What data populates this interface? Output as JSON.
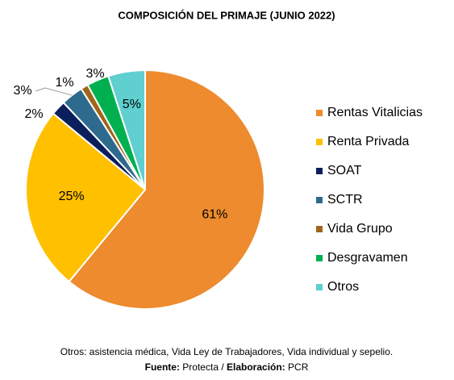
{
  "chart_data": {
    "type": "pie",
    "title": "COMPOSICIÓN DEL PRIMAJE (JUNIO 2022)",
    "categories": [
      "Rentas Vitalicias",
      "Renta Privada",
      "SOAT",
      "SCTR",
      "Vida Grupo",
      "Desgravamen",
      "Otros"
    ],
    "values": [
      61,
      25,
      2,
      3,
      1,
      3,
      5
    ],
    "value_labels": [
      "61%",
      "25%",
      "2%",
      "3%",
      "1%",
      "3%",
      "5%"
    ],
    "colors": [
      "#ED8B2E",
      "#FFC000",
      "#0B1F5C",
      "#2E6A8E",
      "#A0651A",
      "#00B050",
      "#5FCFCF"
    ],
    "legend": "right",
    "note": "Otros: asistencia médica, Vida Ley de Trabajadores, Vida individual y sepelio.",
    "source_label": "Fuente:",
    "source": "Protecta /",
    "elaboration_label": "Elaboración:",
    "elaboration": "PCR"
  }
}
